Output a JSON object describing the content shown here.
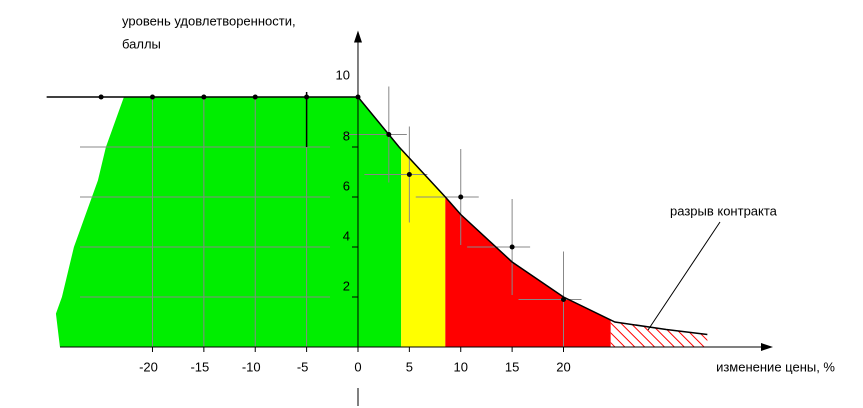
{
  "chart_data": {
    "type": "line",
    "y_label": [
      "уровень удовлетворенности,",
      "баллы"
    ],
    "x_label": "изменение цены, %",
    "annotation": "разрыв контракта",
    "xlim": [
      -29,
      40
    ],
    "ylim": [
      0,
      12.5
    ],
    "xticks": [
      -20,
      -15,
      -10,
      -5,
      0,
      5,
      10,
      15,
      20
    ],
    "yticks": [
      2,
      4,
      6,
      8,
      10
    ],
    "curve": {
      "color": "#000000",
      "x": [
        -30.3,
        0,
        4,
        8.5,
        10,
        15,
        20,
        25,
        30,
        34
      ],
      "values": [
        10,
        10,
        8,
        6,
        5.3,
        3.4,
        2,
        1,
        0.7,
        0.5
      ]
    },
    "points": {
      "color": "#000000",
      "x": [
        -25,
        -20,
        -15,
        -10,
        -5,
        0,
        3,
        5,
        10,
        15,
        20
      ],
      "values": [
        10,
        10,
        10,
        10,
        10,
        10,
        8.5,
        6.9,
        6,
        4,
        1.9
      ]
    },
    "bands": [
      {
        "from": -22,
        "to": 4.2,
        "color": "#00ee00"
      },
      {
        "from": 4.2,
        "to": 8.5,
        "color": "#ffff00"
      },
      {
        "from": 8.5,
        "to": 24.6,
        "color": "#ff0000"
      },
      {
        "from": 24.6,
        "to": 34,
        "color": "#ff0000",
        "hatched": true
      }
    ]
  }
}
